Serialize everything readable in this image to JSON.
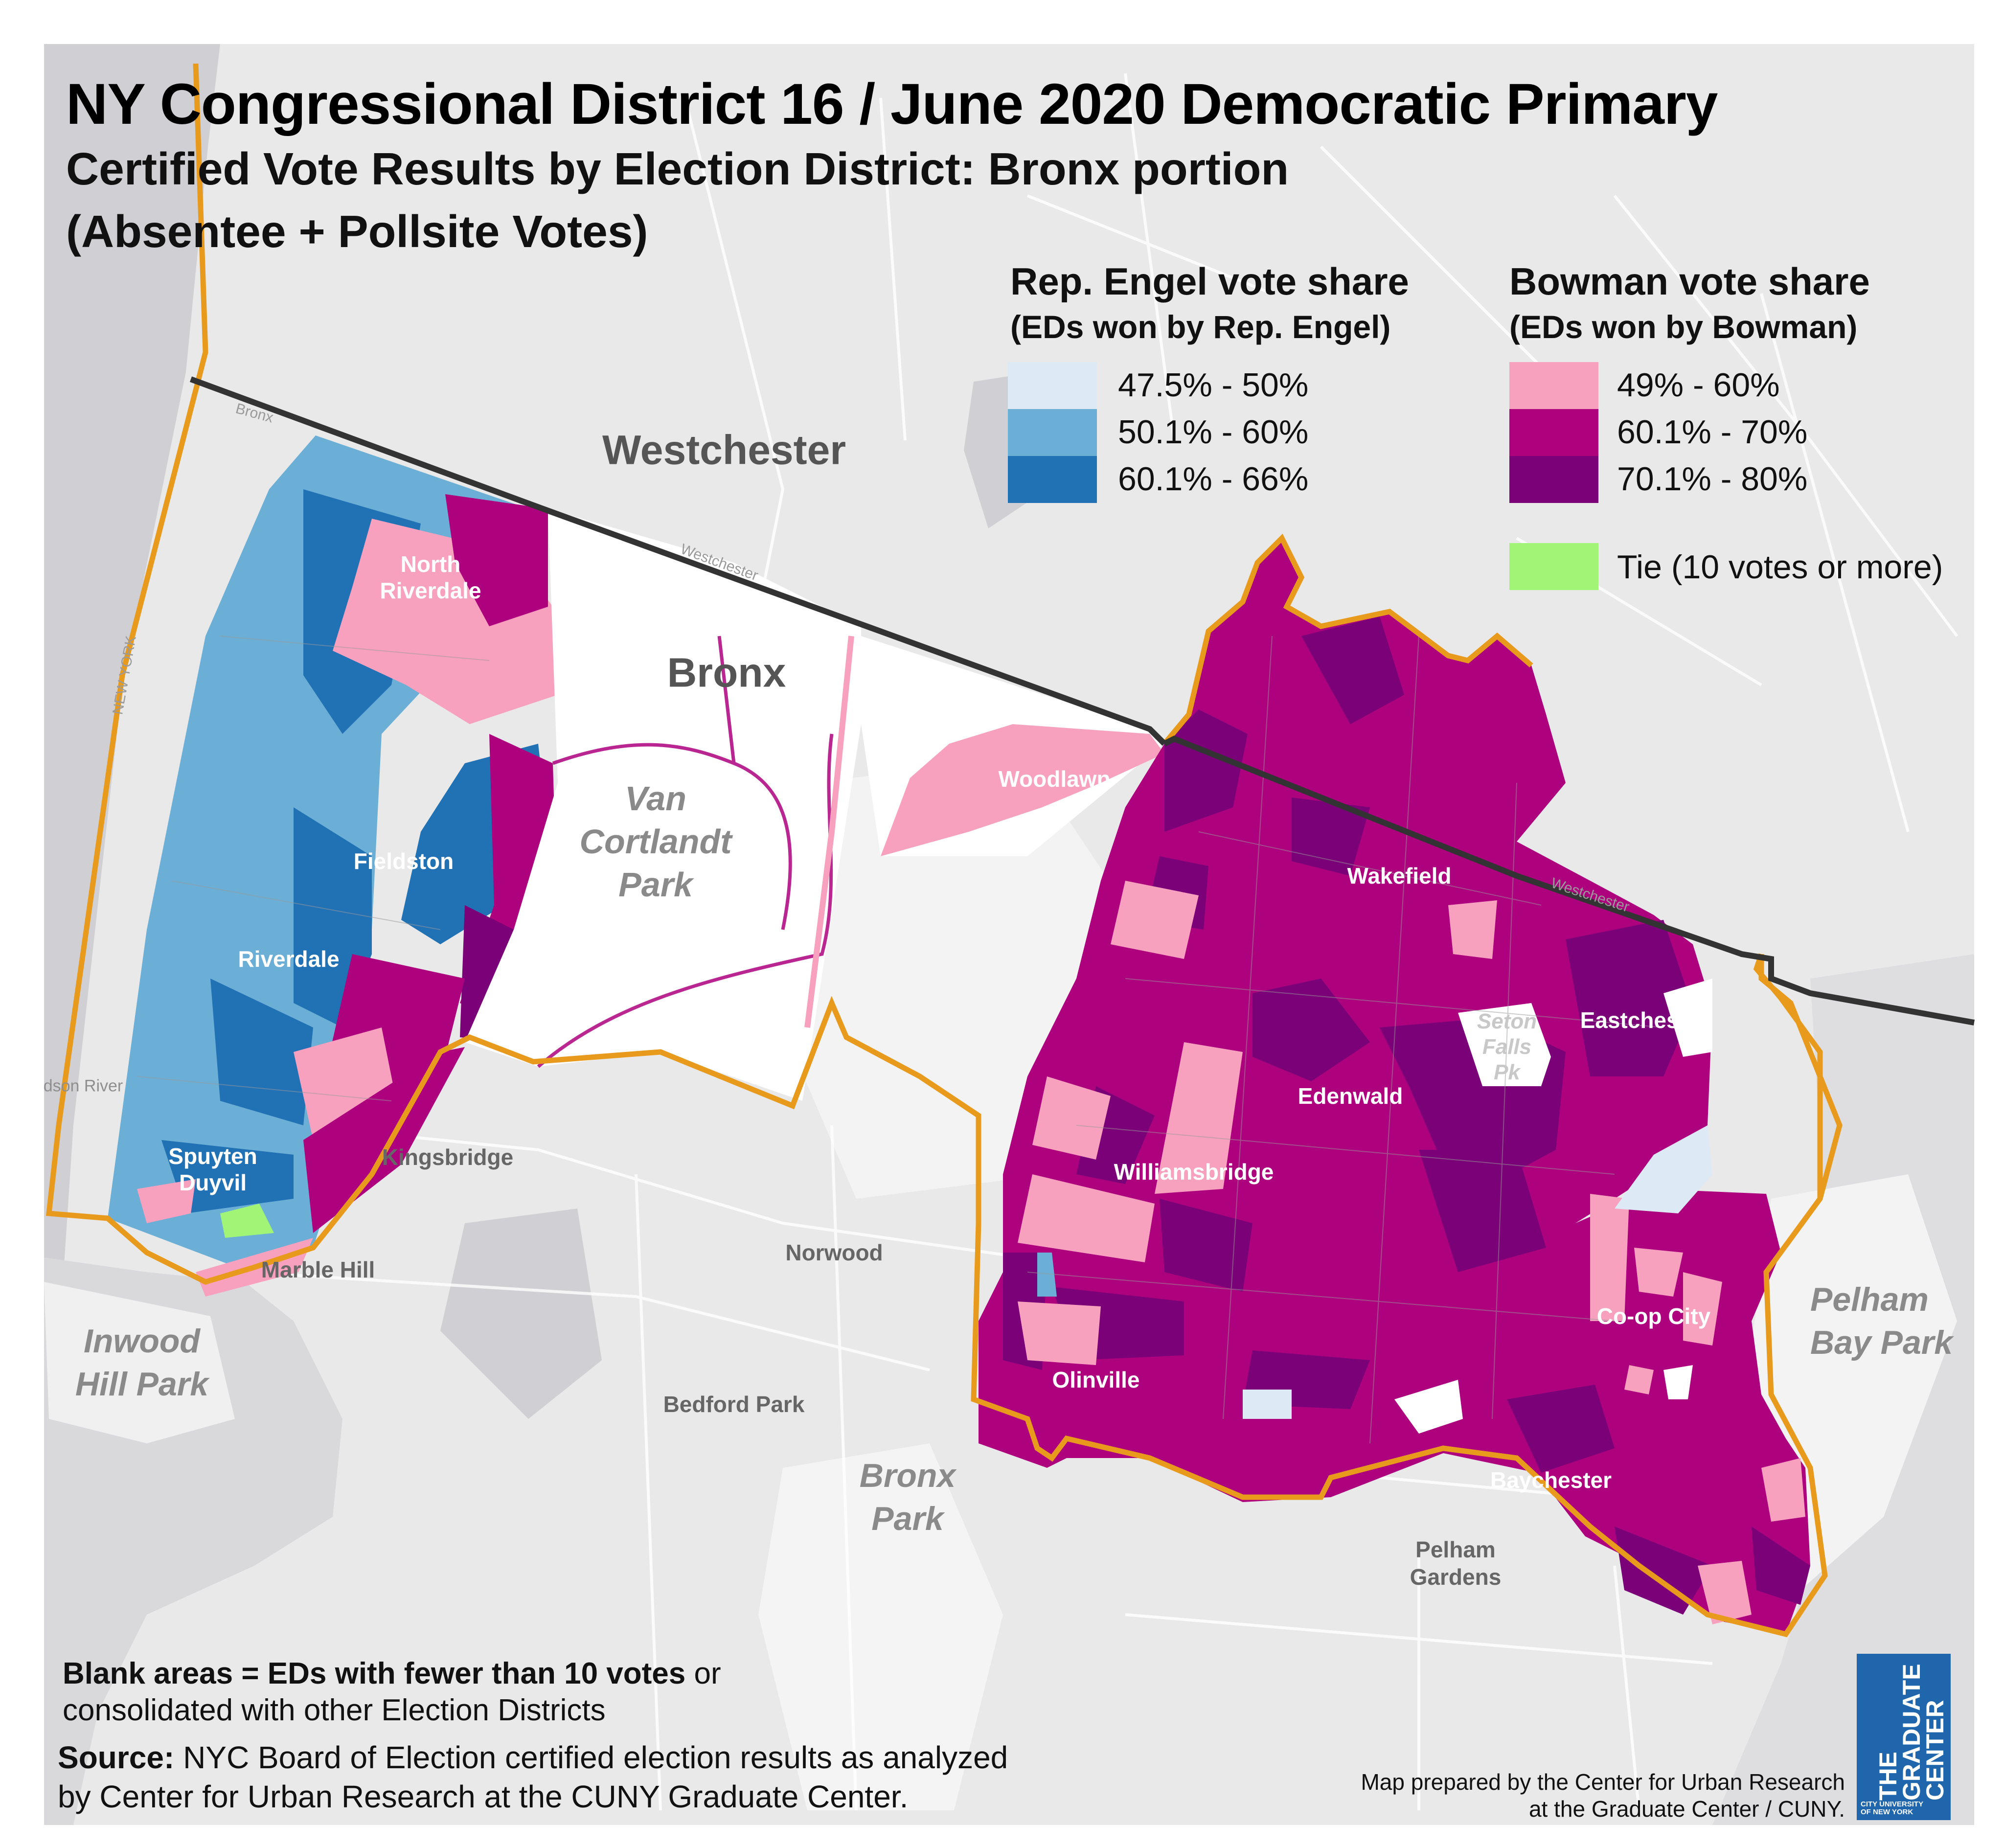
{
  "title": "NY Congressional District 16 / June 2020 Democratic Primary",
  "subtitle1": "Certified Vote Results by Election District: Bronx portion",
  "subtitle2": "(Absentee + Pollsite Votes)",
  "legend": {
    "engel_title": "Rep. Engel vote share",
    "engel_subtitle": "(EDs won by Rep. Engel)",
    "engel_items": [
      {
        "label": "47.5% - 50%",
        "color": "#dde9f5"
      },
      {
        "label": "50.1% - 60%",
        "color": "#6baed6"
      },
      {
        "label": "60.1% - 66%",
        "color": "#2171b5"
      }
    ],
    "bowman_title": "Bowman vote share",
    "bowman_subtitle": "(EDs won by Bowman)",
    "bowman_items": [
      {
        "label": "49% - 60%",
        "color": "#f7a1be"
      },
      {
        "label": "60.1% - 70%",
        "color": "#ae017e"
      },
      {
        "label": "70.1% - 80%",
        "color": "#7a0177"
      }
    ],
    "tie": {
      "label": "Tie (10 votes or more)",
      "color": "#a1f576"
    }
  },
  "map_labels": {
    "region": [
      "Westchester",
      "Bronx"
    ],
    "parks": [
      "Van Cortlandt Park",
      "Inwood Hill Park",
      "Bronx Park",
      "Pelham Bay Park",
      "Seton Falls Pk"
    ],
    "neighborhoods_in_district": [
      "North Riverdale",
      "Fieldston",
      "Riverdale",
      "Spuyten Duyvil",
      "Woodlawn",
      "Wakefield",
      "Eastchester",
      "Edenwald",
      "Williamsbridge",
      "Olinville",
      "Co-op City",
      "Baychester"
    ],
    "neighborhoods_outside": [
      "Kingsbridge",
      "Marble Hill",
      "Norwood",
      "Bedford Park",
      "Pelham Gardens"
    ],
    "road_labels": [
      "Bronx",
      "Westchester",
      "Westchester"
    ],
    "water_labels": [
      "NEW YORK",
      "dson River"
    ]
  },
  "footnote_bold": "Blank areas = EDs with fewer than 10 votes",
  "footnote_rest1": " or",
  "footnote_rest2": "consolidated with other Election Districts",
  "source_bold": "Source:",
  "source_rest1": " NYC Board of Election certified election results as analyzed",
  "source_rest2": "by Center for Urban Research at the CUNY Graduate Center.",
  "credit_line1": "Map prepared by the Center for Urban Research",
  "credit_line2": "at the Graduate Center / CUNY.",
  "logo": {
    "line1": "THE",
    "line2": "GRADUATE",
    "line3": "CENTER",
    "small1": "CITY UNIVERSITY",
    "small2": "OF NEW YORK"
  },
  "colors": {
    "boundary": "#e89a1c",
    "county_line": "#333333",
    "water": "#d0d0d4",
    "land": "#e9e9ea",
    "park": "#f2f2f2"
  }
}
